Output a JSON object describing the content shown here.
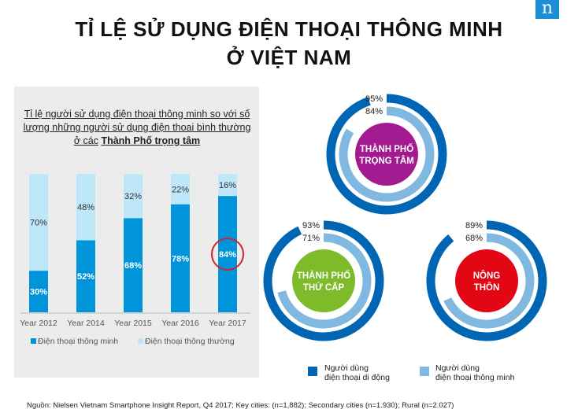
{
  "header": {
    "title_line1": "TỈ LỆ SỬ DỤNG ĐIỆN THOẠI THÔNG MINH",
    "title_line2": "Ở VIỆT NAM",
    "logo_glyph": "n"
  },
  "left_panel": {
    "title_part1": "Tỉ lệ người sử dụng điện thoại thông minh so với số lượng những người sử dụng điện thoai bình thường ở các",
    "title_bold": "Thành Phố trọng tâm"
  },
  "chart_data": [
    {
      "type": "bar",
      "stacked": true,
      "categories": [
        "Year 2012",
        "Year 2014",
        "Year 2015",
        "Year 2016",
        "Year 2017"
      ],
      "series": [
        {
          "name": "Điện thoại thông minh",
          "values": [
            30,
            52,
            68,
            78,
            84
          ],
          "labels": [
            "30%",
            "52%",
            "68%",
            "78%",
            "84%"
          ],
          "color": "#0095da"
        },
        {
          "name": "Điện thoại thông thường",
          "values": [
            70,
            48,
            32,
            22,
            16
          ],
          "labels": [
            "70%",
            "48%",
            "32%",
            "22%",
            "16%"
          ],
          "color": "#bfe7fa"
        }
      ],
      "highlight": {
        "category": "Year 2017",
        "color": "#d0222e"
      },
      "ylim": [
        0,
        100
      ],
      "legend": "bottom"
    },
    {
      "type": "pie",
      "style": "concentric-rings",
      "groups": [
        {
          "label_line1": "THÀNH PHỐ",
          "label_line2": "TRỌNG TÂM",
          "outer_value": 95,
          "outer_label": "95%",
          "inner_value": 84,
          "inner_label": "84%",
          "center_color": "#a31a91"
        },
        {
          "label_line1": "THÀNH PHỐ",
          "label_line2": "THỨ CẤP",
          "outer_value": 93,
          "outer_label": "93%",
          "inner_value": 71,
          "inner_label": "71%",
          "center_color": "#7dbb2a"
        },
        {
          "label_line1": "NÔNG",
          "label_line2": "THÔN",
          "outer_value": 89,
          "outer_label": "89%",
          "inner_value": 68,
          "inner_label": "68%",
          "center_color": "#e30613"
        }
      ],
      "legend": [
        {
          "line1": "Người dùng",
          "line2": "điện thoại di động",
          "color": "#0065b3"
        },
        {
          "line1": "Người dùng",
          "line2": "điện thoại thông minh",
          "color": "#80b8e0"
        }
      ]
    }
  ],
  "footer": {
    "source": "Nguồn: Nielsen Vietnam Smartphone Insight Report, Q4 2017; Key cities:  (n=1,882); Secondary cities (n=1.930); Rural (n=2.027)"
  }
}
